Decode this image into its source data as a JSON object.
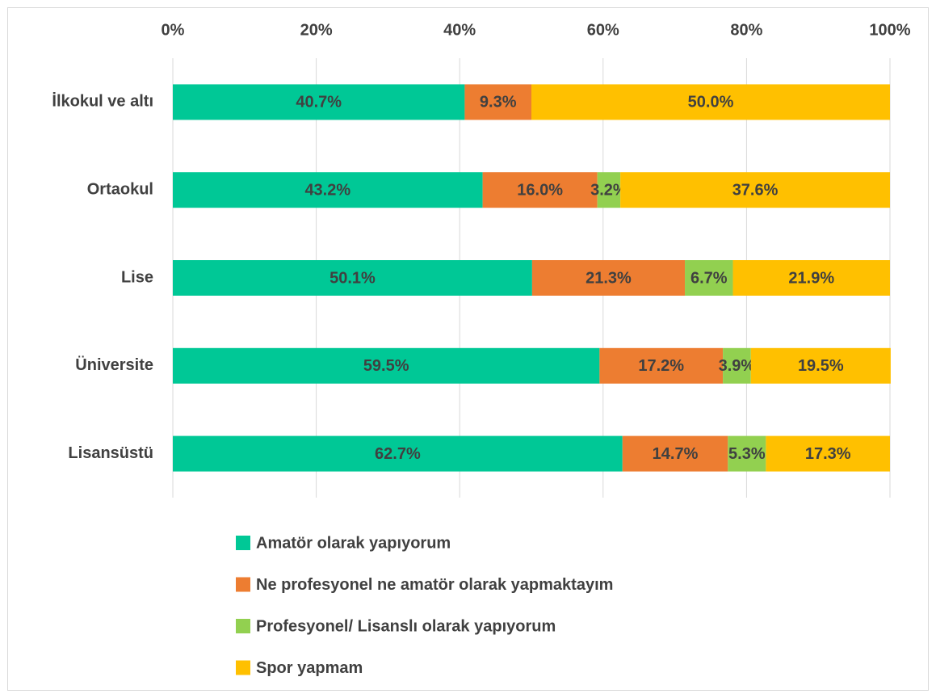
{
  "chart_data": {
    "type": "stacked_bar_horizontal",
    "categories": [
      "İlkokul ve altı",
      "Ortaokul",
      "Lise",
      "Üniversite",
      "Lisansüstü"
    ],
    "series": [
      {
        "name": "Amatör olarak yapıyorum",
        "color": "#00c896",
        "values": [
          40.7,
          43.2,
          50.1,
          59.5,
          62.7
        ],
        "value_labels": [
          "40.7%",
          "43.2%",
          "50.1%",
          "59.5%",
          "62.7%"
        ]
      },
      {
        "name": "Ne profesyonel ne amatör olarak yapmaktayım",
        "color": "#ed7d31",
        "values": [
          9.3,
          16.0,
          21.3,
          17.2,
          14.7
        ],
        "value_labels": [
          "9.3%",
          "16.0%",
          "21.3%",
          "17.2%",
          "14.7%"
        ]
      },
      {
        "name": "Profesyonel/ Lisanslı olarak yapıyorum",
        "color": "#92d050",
        "values": [
          null,
          3.2,
          6.7,
          3.9,
          5.3
        ],
        "value_labels": [
          null,
          "3.2%",
          "6.7%",
          "3.9%",
          "5.3%"
        ]
      },
      {
        "name": "Spor yapmam",
        "color": "#ffc000",
        "values": [
          50.0,
          37.6,
          21.9,
          19.5,
          17.3
        ],
        "value_labels": [
          "50.0%",
          "37.6%",
          "21.9%",
          "19.5%",
          "17.3%"
        ]
      }
    ],
    "xlim": [
      0,
      100
    ],
    "xticks": [
      {
        "value": 0,
        "label": "0%"
      },
      {
        "value": 20,
        "label": "20%"
      },
      {
        "value": 40,
        "label": "40%"
      },
      {
        "value": 60,
        "label": "60%"
      },
      {
        "value": 80,
        "label": "80%"
      },
      {
        "value": 100,
        "label": "100%"
      }
    ],
    "grid": true,
    "legend": "bottom"
  }
}
